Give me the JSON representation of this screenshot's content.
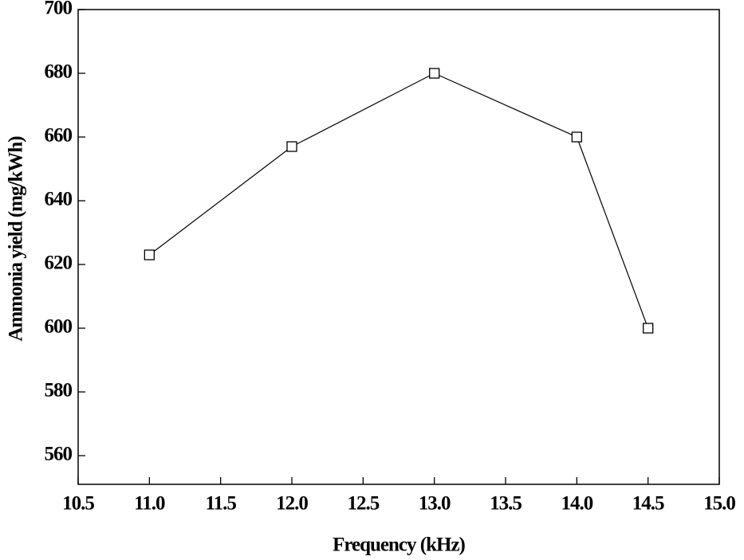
{
  "chart_data": {
    "type": "line",
    "x_label": "Frequency (kHz)",
    "y_label": "Ammonia yield (mg/kWh)",
    "x": [
      11.0,
      12.0,
      13.0,
      14.0,
      14.5
    ],
    "series": [
      {
        "color": "#000000",
        "marker": "square",
        "values": [
          623,
          657,
          680,
          660,
          600
        ]
      }
    ],
    "xlim": [
      10.5,
      15.0
    ],
    "xticks": [
      10.5,
      {
        "value": 11.0,
        "label": "11.0"
      },
      11.5,
      {
        "value": 12.0,
        "label": "12.0"
      },
      12.5,
      {
        "value": 13.0,
        "label": "13.0"
      },
      13.5,
      {
        "value": 14.0,
        "label": "14.0"
      },
      14.5,
      {
        "value": 15.0,
        "label": "15.0"
      }
    ],
    "ylim": [
      551,
      700
    ],
    "yticks": [
      560,
      580,
      600,
      620,
      640,
      660,
      680,
      700
    ],
    "grid": false
  }
}
